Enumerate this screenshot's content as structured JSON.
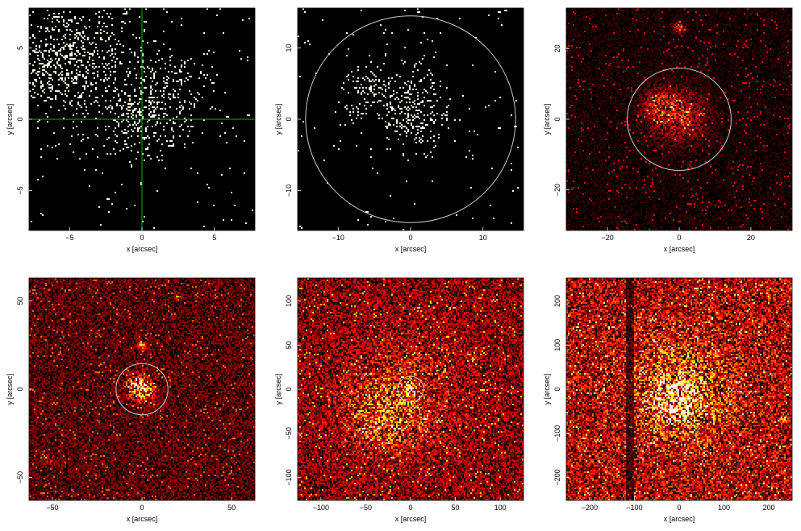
{
  "chart_data": [
    {
      "type": "image",
      "xlabel": "x [arcsec]",
      "ylabel": "y [arcsec]",
      "xlim": [
        -7.8,
        7.8
      ],
      "ylim": [
        -7.8,
        7.8
      ],
      "xticks": [
        -5,
        0,
        5
      ],
      "yticks": [
        -5,
        0,
        5
      ],
      "colormap": "sparse-yellow",
      "overlay": {
        "type": "crosshair",
        "x": 0,
        "y": 0,
        "color": "#22aa22"
      },
      "background_level": 0.04,
      "sources": [
        {
          "x": 0,
          "y": 0,
          "sigma": 1.6,
          "amp": 0.9
        },
        {
          "x": -6,
          "y": 4,
          "sigma": 2.0,
          "amp": 0.9
        },
        {
          "x": 2.5,
          "y": 2.5,
          "sigma": 1.2,
          "amp": 0.6
        },
        {
          "x": -3,
          "y": 4,
          "sigma": 2.5,
          "amp": 0.4
        }
      ]
    },
    {
      "type": "image",
      "xlabel": "x [arcsec]",
      "ylabel": "y [arcsec]",
      "xlim": [
        -15.6,
        15.6
      ],
      "ylim": [
        -15.6,
        15.6
      ],
      "xticks": [
        -10,
        0,
        10
      ],
      "yticks": [
        -10,
        0,
        10
      ],
      "colormap": "sparse-yellow",
      "overlay": {
        "type": "circle",
        "x": 0,
        "y": 0,
        "r": 14.5,
        "color": "#cccccc"
      },
      "background_level": 0.03,
      "sources": [
        {
          "x": 0,
          "y": 0,
          "sigma": 2.5,
          "amp": 0.8
        },
        {
          "x": -6,
          "y": 4,
          "sigma": 2.0,
          "amp": 0.7
        },
        {
          "x": 0,
          "y": 4,
          "sigma": 3.0,
          "amp": 0.5
        }
      ]
    },
    {
      "type": "image",
      "xlabel": "x [arcsec]",
      "ylabel": "y [arcsec]",
      "xlim": [
        -31.5,
        31.5
      ],
      "ylim": [
        -31.5,
        31.5
      ],
      "xticks": [
        -20,
        0,
        20
      ],
      "yticks": [
        -20,
        0,
        20
      ],
      "colormap": "heat",
      "overlay": {
        "type": "circle",
        "x": 0,
        "y": 0,
        "r": 14.5,
        "color": "#cccccc"
      },
      "background_level": 0.1,
      "sources": [
        {
          "x": 0,
          "y": 1,
          "sigma": 5,
          "amp": 0.6
        },
        {
          "x": -6,
          "y": 4,
          "sigma": 3,
          "amp": 0.5
        },
        {
          "x": 0,
          "y": 26,
          "sigma": 1,
          "amp": 0.8
        }
      ]
    },
    {
      "type": "image",
      "xlabel": "x [arcsec]",
      "ylabel": "y [arcsec]",
      "xlim": [
        -63,
        63
      ],
      "ylim": [
        -63,
        63
      ],
      "xticks": [
        -50,
        0,
        50
      ],
      "yticks": [
        -50,
        0,
        50
      ],
      "colormap": "heat",
      "overlay": {
        "type": "circle",
        "x": 0,
        "y": 0,
        "r": 14.5,
        "color": "#cccccc"
      },
      "background_level": 0.3,
      "sources": [
        {
          "x": 0,
          "y": 0,
          "sigma": 5,
          "amp": 1.0
        },
        {
          "x": -4,
          "y": 2,
          "sigma": 3,
          "amp": 0.8
        },
        {
          "x": 0,
          "y": 25,
          "sigma": 1.5,
          "amp": 1.0
        },
        {
          "x": 20,
          "y": 52,
          "sigma": 1.2,
          "amp": 0.7
        },
        {
          "x": -52,
          "y": -40,
          "sigma": 2.0,
          "amp": 0.4
        }
      ]
    },
    {
      "type": "image",
      "xlabel": "x [arcsec]",
      "ylabel": "y [arcsec]",
      "xlim": [
        -126,
        126
      ],
      "ylim": [
        -126,
        126
      ],
      "xticks": [
        -100,
        -50,
        0,
        50,
        100
      ],
      "yticks": [
        -100,
        -50,
        0,
        50,
        100
      ],
      "colormap": "heat",
      "overlay": {
        "type": "circle",
        "x": 0,
        "y": 0,
        "r": 14.5,
        "color": "#cccccc"
      },
      "background_level": 0.45,
      "sources": [
        {
          "x": 0,
          "y": 0,
          "sigma": 5,
          "amp": 1.2
        },
        {
          "x": -30,
          "y": -30,
          "sigma": 28,
          "amp": 0.5
        },
        {
          "x": 0,
          "y": 0,
          "sigma": 55,
          "amp": 0.25
        },
        {
          "x": 65,
          "y": 40,
          "sigma": 2,
          "amp": 0.8
        },
        {
          "x": 70,
          "y": 35,
          "sigma": 1.5,
          "amp": 0.7
        }
      ]
    },
    {
      "type": "image",
      "xlabel": "x [arcsec]",
      "ylabel": "y [arcsec]",
      "xlim": [
        -252,
        252
      ],
      "ylim": [
        -252,
        252
      ],
      "xticks": [
        -200,
        -100,
        0,
        100,
        200
      ],
      "yticks": [
        -200,
        -100,
        0,
        100,
        200
      ],
      "colormap": "heat",
      "background_level": 0.65,
      "dark_stripe": {
        "x0": -120,
        "x1": -100
      },
      "sources": [
        {
          "x": -10,
          "y": -30,
          "sigma": 30,
          "amp": 1.0
        },
        {
          "x": 0,
          "y": 0,
          "sigma": 80,
          "amp": 0.5
        },
        {
          "x": 230,
          "y": -65,
          "sigma": 5,
          "amp": 0.9
        },
        {
          "x": -215,
          "y": 100,
          "sigma": 3,
          "amp": 0.7
        }
      ]
    }
  ]
}
